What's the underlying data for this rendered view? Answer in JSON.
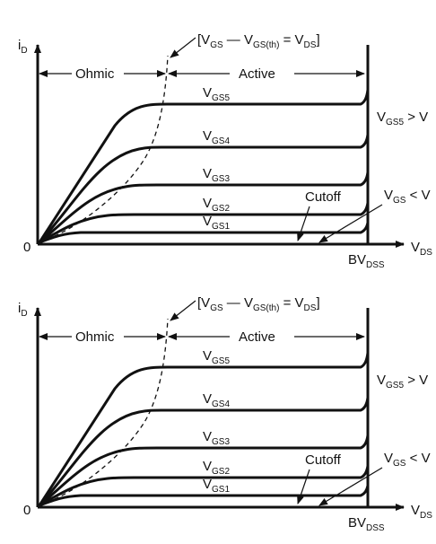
{
  "panels": [
    {
      "id": "top",
      "y_axis_main": "i",
      "y_axis_sub": "D",
      "origin_label": "0",
      "x_axis_main": "V",
      "x_axis_sub": "DS",
      "breakdown_main": "BV",
      "breakdown_sub": "DSS",
      "boundary_label": {
        "open": "[V",
        "gs_sub": "GS",
        "dash": " — V",
        "th_sub": "GS(th)",
        "eq": " = V",
        "ds_sub": "DS",
        "close": "]"
      },
      "regions": {
        "ohmic": "Ohmic",
        "active": "Active",
        "cutoff": "Cutoff"
      },
      "curves": [
        {
          "main": "V",
          "sub": "GS5"
        },
        {
          "main": "V",
          "sub": "GS4"
        },
        {
          "main": "V",
          "sub": "GS3"
        },
        {
          "main": "V",
          "sub": "GS2"
        },
        {
          "main": "V",
          "sub": "GS1"
        }
      ],
      "right_note_1": {
        "main": "V",
        "sub": "GS5",
        "rest": " > V"
      },
      "right_note_2": {
        "main": "V",
        "sub": "GS",
        "rest": " < V"
      }
    },
    {
      "id": "bottom",
      "y_axis_main": "i",
      "y_axis_sub": "D",
      "origin_label": "0",
      "x_axis_main": "V",
      "x_axis_sub": "DS",
      "breakdown_main": "BV",
      "breakdown_sub": "DSS",
      "boundary_label": {
        "open": "[V",
        "gs_sub": "GS",
        "dash": " — V",
        "th_sub": "GS(th)",
        "eq": " = V",
        "ds_sub": "DS",
        "close": "]"
      },
      "regions": {
        "ohmic": "Ohmic",
        "active": "Active",
        "cutoff": "Cutoff"
      },
      "curves": [
        {
          "main": "V",
          "sub": "GS5"
        },
        {
          "main": "V",
          "sub": "GS4"
        },
        {
          "main": "V",
          "sub": "GS3"
        },
        {
          "main": "V",
          "sub": "GS2"
        },
        {
          "main": "V",
          "sub": "GS1"
        }
      ],
      "right_note_1": {
        "main": "V",
        "sub": "GS5",
        "rest": " > V"
      },
      "right_note_2": {
        "main": "V",
        "sub": "GS",
        "rest": " < V"
      }
    }
  ]
}
